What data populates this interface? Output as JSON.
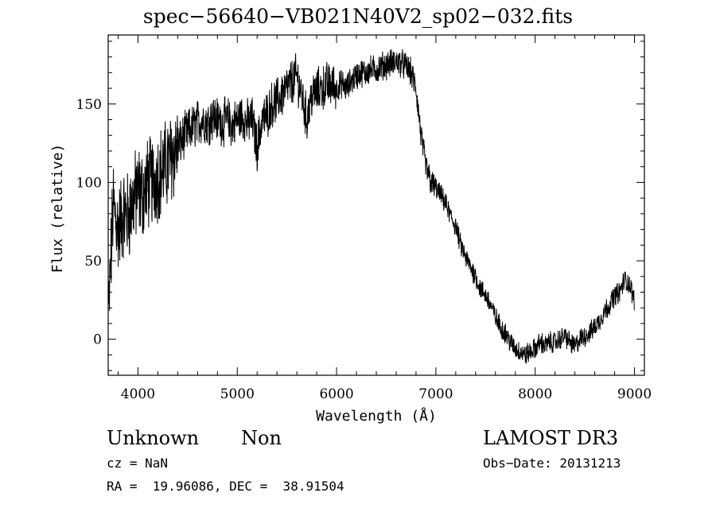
{
  "chart_data": {
    "type": "line",
    "title": "spec−56640−VB021N40V2_sp02−032.fits",
    "xlabel": "Wavelength (Å)",
    "ylabel": "Flux (relative)",
    "xlim": [
      3700,
      9100
    ],
    "ylim": [
      -23,
      194
    ],
    "xticks": [
      4000,
      5000,
      6000,
      7000,
      8000,
      9000
    ],
    "yticks": [
      0,
      50,
      100,
      150
    ],
    "grid": false,
    "series": [
      {
        "name": "flux",
        "x": [
          3700,
          3750,
          3800,
          3850,
          3900,
          3950,
          4000,
          4050,
          4100,
          4150,
          4200,
          4250,
          4300,
          4350,
          4400,
          4450,
          4500,
          4550,
          4600,
          4650,
          4700,
          4750,
          4800,
          4850,
          4900,
          4950,
          5000,
          5050,
          5100,
          5150,
          5200,
          5250,
          5300,
          5350,
          5400,
          5450,
          5500,
          5550,
          5600,
          5650,
          5700,
          5750,
          5800,
          5850,
          5900,
          5950,
          6000,
          6050,
          6100,
          6150,
          6200,
          6250,
          6300,
          6350,
          6400,
          6450,
          6500,
          6550,
          6600,
          6650,
          6700,
          6750,
          6800,
          6850,
          6900,
          6950,
          7000,
          7050,
          7100,
          7150,
          7200,
          7250,
          7300,
          7350,
          7400,
          7450,
          7500,
          7550,
          7600,
          7650,
          7700,
          7750,
          7800,
          7850,
          7900,
          7950,
          8000,
          8050,
          8100,
          8150,
          8200,
          8250,
          8300,
          8350,
          8400,
          8450,
          8500,
          8550,
          8600,
          8650,
          8700,
          8750,
          8800,
          8850,
          8900,
          8950,
          9000
        ],
        "values": [
          10,
          85,
          70,
          80,
          78,
          88,
          95,
          92,
          100,
          100,
          105,
          108,
          112,
          118,
          122,
          128,
          132,
          135,
          138,
          140,
          138,
          142,
          140,
          138,
          140,
          136,
          140,
          142,
          138,
          140,
          122,
          140,
          143,
          150,
          152,
          156,
          160,
          164,
          168,
          155,
          140,
          155,
          158,
          160,
          162,
          162,
          160,
          163,
          160,
          165,
          168,
          170,
          170,
          172,
          172,
          174,
          175,
          176,
          177,
          176,
          174,
          170,
          160,
          130,
          110,
          100,
          96,
          92,
          86,
          78,
          72,
          60,
          52,
          46,
          40,
          32,
          28,
          22,
          14,
          8,
          4,
          -2,
          -6,
          -8,
          -10,
          -8,
          -6,
          -2,
          -4,
          -2,
          -2,
          0,
          2,
          -2,
          -5,
          0,
          2,
          4,
          8,
          12,
          18,
          22,
          28,
          30,
          38,
          35,
          25
        ]
      }
    ]
  },
  "footer": {
    "object_class": "Unknown",
    "subclass": "Non",
    "cz": "cz = NaN",
    "radec": "RA =  19.96086, DEC =  38.91504",
    "survey": "LAMOST DR3",
    "obs_date": "Obs−Date: 20131213"
  }
}
